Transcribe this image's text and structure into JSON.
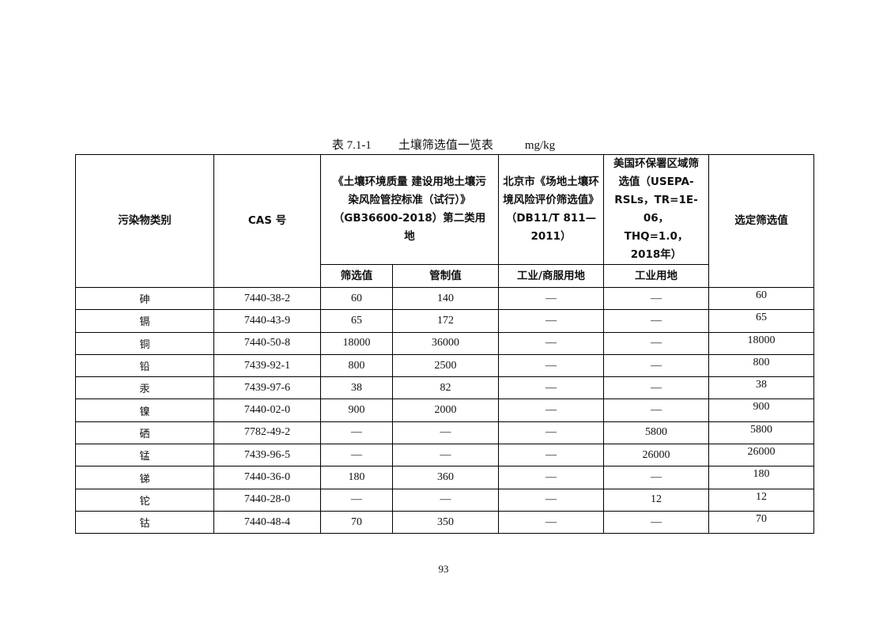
{
  "caption": {
    "label": "表 7.1-1",
    "title": "土壤筛选值一览表",
    "unit": "mg/kg"
  },
  "headers": {
    "pollutant": "污染物类别",
    "cas": "CAS 号",
    "gb": "《土壤环境质量 建设用地土壤污染风险管控标准（试行）》（GB36600-2018）第二类用地",
    "beijing": "北京市《场地土壤环境风险评价筛选值》（DB11/T 811—2011）",
    "usepa": "美国环保署区域筛选值（USEPA-RSLs，TR=1E-06，THQ=1.0，2018年）",
    "selected": "选定筛选值",
    "gb_screen": "筛选值",
    "gb_control": "管制值",
    "beijing_sub": "工业/商服用地",
    "usepa_sub": "工业用地"
  },
  "rows": [
    {
      "name": "砷",
      "cas": "7440-38-2",
      "screen": "60",
      "control": "140",
      "beijing": "—",
      "usepa": "—",
      "selected": "60"
    },
    {
      "name": "镉",
      "cas": "7440-43-9",
      "screen": "65",
      "control": "172",
      "beijing": "—",
      "usepa": "—",
      "selected": "65"
    },
    {
      "name": "铜",
      "cas": "7440-50-8",
      "screen": "18000",
      "control": "36000",
      "beijing": "—",
      "usepa": "—",
      "selected": "18000"
    },
    {
      "name": "铅",
      "cas": "7439-92-1",
      "screen": "800",
      "control": "2500",
      "beijing": "—",
      "usepa": "—",
      "selected": "800"
    },
    {
      "name": "汞",
      "cas": "7439-97-6",
      "screen": "38",
      "control": "82",
      "beijing": "—",
      "usepa": "—",
      "selected": "38"
    },
    {
      "name": "镍",
      "cas": "7440-02-0",
      "screen": "900",
      "control": "2000",
      "beijing": "—",
      "usepa": "—",
      "selected": "900"
    },
    {
      "name": "硒",
      "cas": "7782-49-2",
      "screen": "—",
      "control": "—",
      "beijing": "—",
      "usepa": "5800",
      "selected": "5800"
    },
    {
      "name": "锰",
      "cas": "7439-96-5",
      "screen": "—",
      "control": "—",
      "beijing": "—",
      "usepa": "26000",
      "selected": "26000"
    },
    {
      "name": "锑",
      "cas": "7440-36-0",
      "screen": "180",
      "control": "360",
      "beijing": "—",
      "usepa": "—",
      "selected": "180"
    },
    {
      "name": "铊",
      "cas": "7440-28-0",
      "screen": "—",
      "control": "—",
      "beijing": "—",
      "usepa": "12",
      "selected": "12"
    },
    {
      "name": "钴",
      "cas": "7440-48-4",
      "screen": "70",
      "control": "350",
      "beijing": "—",
      "usepa": "—",
      "selected": "70"
    }
  ],
  "page_number": "93"
}
